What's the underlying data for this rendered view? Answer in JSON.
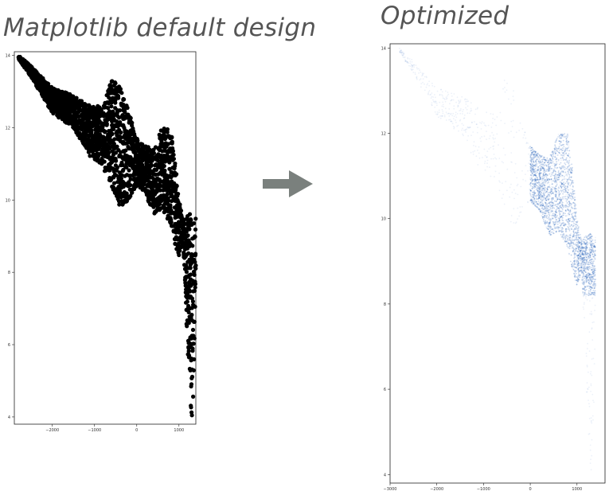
{
  "headings": {
    "left": "Matplotlib default design",
    "right": "Optimized"
  },
  "colors": {
    "default_marker": "#000000",
    "optimized_marker": "#0a4fb0",
    "arrow": "#7a807d"
  },
  "chart_data": [
    {
      "type": "scatter",
      "title": "Matplotlib default design",
      "xlabel": "",
      "ylabel": "",
      "xlim": [
        -2900,
        1400
      ],
      "ylim": [
        3.8,
        14.1
      ],
      "xticks": [
        -2000,
        -1000,
        0,
        1000
      ],
      "xtick_labels": [
        "−2000",
        "−1000",
        "0",
        "1000"
      ],
      "yticks": [
        4,
        6,
        8,
        10,
        12,
        14
      ],
      "ytick_labels": [
        "4",
        "6",
        "8",
        "10",
        "12",
        "14"
      ],
      "marker_color": "#000000",
      "alpha": 1.0,
      "envelope": {
        "x": [
          -2800,
          -2500,
          -2000,
          -1500,
          -1100,
          -800,
          -600,
          -400,
          -200,
          0,
          200,
          400,
          600,
          800,
          900,
          1000,
          1100,
          1200,
          1300,
          1350,
          1400
        ],
        "y_upper": [
          14.0,
          13.7,
          13.1,
          12.9,
          12.6,
          12.6,
          13.3,
          13.2,
          12.5,
          11.7,
          11.5,
          11.4,
          12.0,
          12.0,
          11.2,
          10.0,
          9.5,
          9.6,
          9.7,
          9.5,
          9.6
        ],
        "y_lower": [
          13.9,
          13.4,
          12.4,
          12.0,
          11.2,
          10.9,
          10.4,
          9.8,
          10.0,
          10.4,
          10.2,
          9.6,
          9.7,
          9.3,
          8.8,
          8.4,
          8.8,
          6.0,
          3.9,
          4.8,
          8.0
        ]
      }
    },
    {
      "type": "scatter",
      "title": "Optimized",
      "xlabel": "",
      "ylabel": "",
      "xlim": [
        -3000,
        1600
      ],
      "ylim": [
        3.8,
        14.1
      ],
      "xticks": [
        -3000,
        -2000,
        -1000,
        0,
        1000
      ],
      "xtick_labels": [
        "−3000",
        "−2000",
        "−1000",
        "0",
        "1000"
      ],
      "yticks": [
        4,
        6,
        8,
        10,
        12,
        14
      ],
      "ytick_labels": [
        "4",
        "6",
        "8",
        "10",
        "12",
        "14"
      ],
      "marker_color": "#0a4fb0",
      "alpha": 0.08,
      "dense_region": {
        "x": [
          0,
          1400
        ],
        "y": [
          8.2,
          12.2
        ]
      },
      "envelope": {
        "x": [
          -2800,
          -2500,
          -2000,
          -1500,
          -1100,
          -800,
          -600,
          -400,
          -200,
          0,
          200,
          400,
          600,
          800,
          900,
          1000,
          1100,
          1200,
          1300,
          1350,
          1400
        ],
        "y_upper": [
          14.0,
          13.7,
          13.1,
          12.9,
          12.6,
          12.6,
          13.3,
          13.2,
          12.5,
          11.7,
          11.5,
          11.4,
          12.0,
          12.0,
          11.2,
          10.0,
          9.5,
          9.6,
          9.7,
          9.5,
          9.6
        ],
        "y_lower": [
          13.9,
          13.4,
          12.4,
          12.0,
          11.2,
          10.9,
          10.4,
          9.8,
          10.0,
          10.4,
          10.2,
          9.6,
          9.7,
          9.3,
          8.8,
          8.4,
          8.8,
          6.0,
          3.9,
          4.8,
          8.0
        ]
      }
    }
  ]
}
